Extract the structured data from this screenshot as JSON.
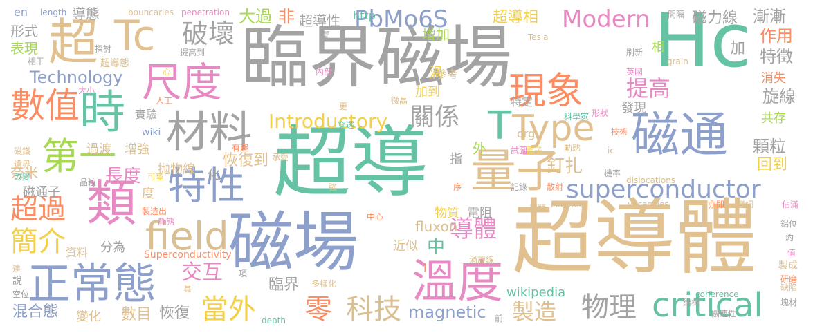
{
  "palette": {
    "gray": "#a3a3a3",
    "tan": "#e2c191",
    "green": "#66c2a5",
    "blue": "#8da0cb",
    "pink": "#e78ac3",
    "orange": "#fc8d62",
    "yellow": "#f2d04b",
    "lime": "#a6d854",
    "khaki": "#d9bf91"
  },
  "words": [
    {
      "text": "臨界磁場",
      "color": "gray"
    },
    {
      "text": "Hc",
      "color": "green"
    },
    {
      "text": "超導",
      "color": "green"
    },
    {
      "text": "超導體",
      "color": "tan"
    },
    {
      "text": "磁場",
      "color": "blue"
    },
    {
      "text": "正常態",
      "color": "blue"
    },
    {
      "text": "溫度",
      "color": "pink"
    },
    {
      "text": "磁通",
      "color": "blue"
    },
    {
      "text": "量子",
      "color": "tan"
    },
    {
      "text": "材料",
      "color": "gray"
    },
    {
      "text": "特性",
      "color": "blue"
    },
    {
      "text": "類",
      "color": "pink"
    },
    {
      "text": "Tc",
      "color": "tan"
    },
    {
      "text": "尺度",
      "color": "pink"
    },
    {
      "text": "時",
      "color": "green"
    },
    {
      "text": "第一",
      "color": "lime"
    },
    {
      "text": "現象",
      "color": "orange"
    },
    {
      "text": "數值",
      "color": "orange"
    },
    {
      "text": "superconductor",
      "color": "blue"
    },
    {
      "text": "critical",
      "color": "green"
    },
    {
      "text": "field",
      "color": "khaki"
    },
    {
      "text": "Type",
      "color": "tan"
    },
    {
      "text": "破壞",
      "color": "gray"
    },
    {
      "text": "超",
      "color": "tan"
    },
    {
      "text": "PbMo6S",
      "color": "blue"
    },
    {
      "text": "Modern",
      "color": "pink"
    },
    {
      "text": "Technology",
      "color": "blue"
    },
    {
      "text": "Introductory",
      "color": "yellow"
    },
    {
      "text": "關係",
      "color": "gray"
    },
    {
      "text": "T",
      "color": "green"
    },
    {
      "text": "科技",
      "color": "khaki"
    },
    {
      "text": "零",
      "color": "orange"
    },
    {
      "text": "當外",
      "color": "yellow"
    },
    {
      "text": "物理",
      "color": "gray"
    },
    {
      "text": "製造",
      "color": "tan"
    },
    {
      "text": "導體",
      "color": "pink"
    },
    {
      "text": "超過",
      "color": "orange"
    },
    {
      "text": "簡介",
      "color": "yellow"
    },
    {
      "text": "長度",
      "color": "pink"
    },
    {
      "text": "恢復到",
      "color": "tan"
    },
    {
      "text": "交互",
      "color": "pink"
    },
    {
      "text": "磁通子",
      "color": "gray"
    },
    {
      "text": "超導性",
      "color": "gray"
    },
    {
      "text": "超導相",
      "color": "yellow"
    },
    {
      "text": "磁力線",
      "color": "gray"
    },
    {
      "text": "漸漸",
      "color": "gray"
    },
    {
      "text": "作用",
      "color": "orange"
    },
    {
      "text": "特徵",
      "color": "gray"
    },
    {
      "text": "提高",
      "color": "pink"
    },
    {
      "text": "旋線",
      "color": "gray"
    },
    {
      "text": "顆粒",
      "color": "gray"
    },
    {
      "text": "釘扎",
      "color": "khaki"
    },
    {
      "text": "回到",
      "color": "yellow"
    },
    {
      "text": "fluxon",
      "color": "khaki"
    },
    {
      "text": "magnetic",
      "color": "blue"
    },
    {
      "text": "wikipedia",
      "color": "green"
    },
    {
      "text": "Superconductivity",
      "color": "orange"
    },
    {
      "text": "混合態",
      "color": "blue"
    },
    {
      "text": "變化",
      "color": "khaki"
    },
    {
      "text": "數目",
      "color": "tan"
    },
    {
      "text": "恢復",
      "color": "gray"
    },
    {
      "text": "臨界",
      "color": "gray"
    },
    {
      "text": "形式",
      "color": "gray"
    },
    {
      "text": "表現",
      "color": "lime"
    },
    {
      "text": "奈米",
      "color": "tan"
    },
    {
      "text": "大過",
      "color": "lime"
    },
    {
      "text": "非",
      "color": "orange"
    },
    {
      "text": "http",
      "color": "green"
    },
    {
      "text": "增加",
      "color": "lime"
    },
    {
      "text": "en",
      "color": "blue"
    },
    {
      "text": "length",
      "color": "blue"
    },
    {
      "text": "導態",
      "color": "gray"
    },
    {
      "text": "bouncaries",
      "color": "tan"
    },
    {
      "text": "penetration",
      "color": "pink"
    },
    {
      "text": "coherence",
      "color": "green"
    },
    {
      "text": "depth",
      "color": "green"
    },
    {
      "text": "dislocations",
      "color": "khaki"
    },
    {
      "text": "vacancies",
      "color": "khaki"
    },
    {
      "text": "Magnet",
      "color": "khaki"
    },
    {
      "text": "grain",
      "color": "khaki"
    },
    {
      "text": "Tesla",
      "color": "khaki"
    },
    {
      "text": "org",
      "color": "khaki"
    },
    {
      "text": "wiki",
      "color": "blue"
    },
    {
      "text": "ic",
      "color": "khaki"
    },
    {
      "text": "抛物線",
      "color": "tan"
    },
    {
      "text": "資料",
      "color": "khaki"
    },
    {
      "text": "分為",
      "color": "gray"
    },
    {
      "text": "近似",
      "color": "khaki"
    },
    {
      "text": "物質",
      "color": "yellow"
    },
    {
      "text": "電阻",
      "color": "gray"
    },
    {
      "text": "中",
      "color": "green"
    },
    {
      "text": "外",
      "color": "lime"
    },
    {
      "text": "指",
      "color": "gray"
    },
    {
      "text": "化",
      "color": "gray"
    },
    {
      "text": "度",
      "color": "tan"
    },
    {
      "text": "過渡",
      "color": "khaki"
    },
    {
      "text": "增強",
      "color": "khaki"
    },
    {
      "text": "實驗",
      "color": "gray"
    },
    {
      "text": "特定",
      "color": "gray"
    },
    {
      "text": "發現",
      "color": "gray"
    },
    {
      "text": "共存",
      "color": "lime"
    },
    {
      "text": "消失",
      "color": "orange"
    },
    {
      "text": "加",
      "color": "gray"
    },
    {
      "text": "相",
      "color": "lime"
    },
    {
      "text": "渦",
      "color": "yellow"
    },
    {
      "text": "參考",
      "color": "khaki"
    },
    {
      "text": "加到",
      "color": "yellow"
    },
    {
      "text": "提高到",
      "color": "gray"
    },
    {
      "text": "探討",
      "color": "gray"
    },
    {
      "text": "超導態",
      "color": "khaki"
    },
    {
      "text": "相干",
      "color": "gray"
    },
    {
      "text": "大小",
      "color": "pink"
    },
    {
      "text": "人工",
      "color": "orange"
    },
    {
      "text": "內部",
      "color": "pink"
    },
    {
      "text": "更",
      "color": "khaki"
    },
    {
      "text": "微晶",
      "color": "khaki"
    },
    {
      "text": "刷新",
      "color": "gray"
    },
    {
      "text": "英國",
      "color": "pink"
    },
    {
      "text": "間隔",
      "color": "gray"
    },
    {
      "text": "科學家",
      "color": "green"
    },
    {
      "text": "形狀",
      "color": "pink"
    },
    {
      "text": "技術",
      "color": "orange"
    },
    {
      "text": "試圖",
      "color": "pink"
    },
    {
      "text": "電子",
      "color": "yellow"
    },
    {
      "text": "動態",
      "color": "khaki"
    },
    {
      "text": "機率",
      "color": "gray"
    },
    {
      "text": "散射",
      "color": "orange"
    },
    {
      "text": "記錄",
      "color": "gray"
    },
    {
      "text": "序",
      "color": "orange"
    },
    {
      "text": "強",
      "color": "tan"
    },
    {
      "text": "承受",
      "color": "khaki"
    },
    {
      "text": "有趣",
      "color": "orange"
    },
    {
      "text": "穿透",
      "color": "green"
    },
    {
      "text": "磁鐵",
      "color": "tan"
    },
    {
      "text": "還界",
      "color": "tan"
    },
    {
      "text": "改變",
      "color": "green"
    },
    {
      "text": "晶粒",
      "color": "gray"
    },
    {
      "text": "可望",
      "color": "yellow"
    },
    {
      "text": "製造出",
      "color": "orange"
    },
    {
      "text": "靜態",
      "color": "pink"
    },
    {
      "text": "中心",
      "color": "orange"
    },
    {
      "text": "種類",
      "color": "khaki"
    },
    {
      "text": "亦即",
      "color": "orange"
    },
    {
      "text": "變細",
      "color": "khaki"
    },
    {
      "text": "佔滿",
      "color": "pink"
    },
    {
      "text": "鋁位",
      "color": "gray"
    },
    {
      "text": "約",
      "color": "gray"
    },
    {
      "text": "值",
      "color": "pink"
    },
    {
      "text": "製成",
      "color": "khaki"
    },
    {
      "text": "研磨",
      "color": "orange"
    },
    {
      "text": "缺陷",
      "color": "khaki"
    },
    {
      "text": "結構",
      "color": "gray"
    },
    {
      "text": "關連性",
      "color": "gray"
    },
    {
      "text": "塊材",
      "color": "gray"
    },
    {
      "text": "渦旋線",
      "color": "khaki"
    },
    {
      "text": "多樣化",
      "color": "khaki"
    },
    {
      "text": "項",
      "color": "gray"
    },
    {
      "text": "具",
      "color": "tan"
    },
    {
      "text": "達",
      "color": "tan"
    },
    {
      "text": "說",
      "color": "gray"
    },
    {
      "text": "空位",
      "color": "gray"
    },
    {
      "text": "前",
      "color": "gray"
    },
    {
      "text": "間",
      "color": "gray"
    },
    {
      "text": "心",
      "color": "yellow"
    },
    {
      "text": "l",
      "color": "orange"
    }
  ]
}
